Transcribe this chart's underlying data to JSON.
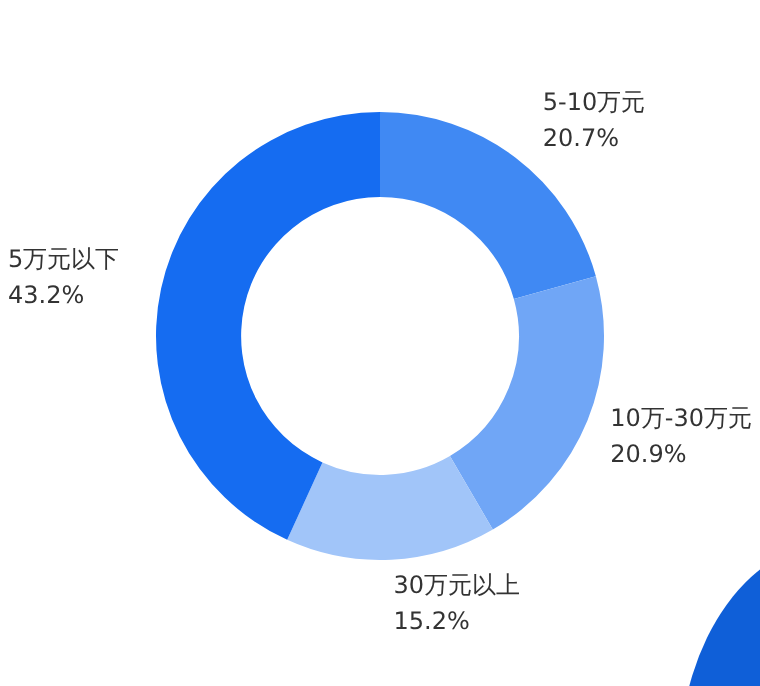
{
  "chart_data": {
    "type": "donut",
    "categories": [
      "5-10万元",
      "10万-30万元",
      "30万元以上",
      "5万元以下"
    ],
    "values": [
      20.7,
      20.9,
      15.2,
      43.2
    ],
    "value_labels": [
      "20.7%",
      "20.9%",
      "15.2%",
      "43.2%"
    ],
    "colors": [
      "#4089f3",
      "#70a6f6",
      "#a1c5f9",
      "#156cf1"
    ],
    "legend": false
  }
}
